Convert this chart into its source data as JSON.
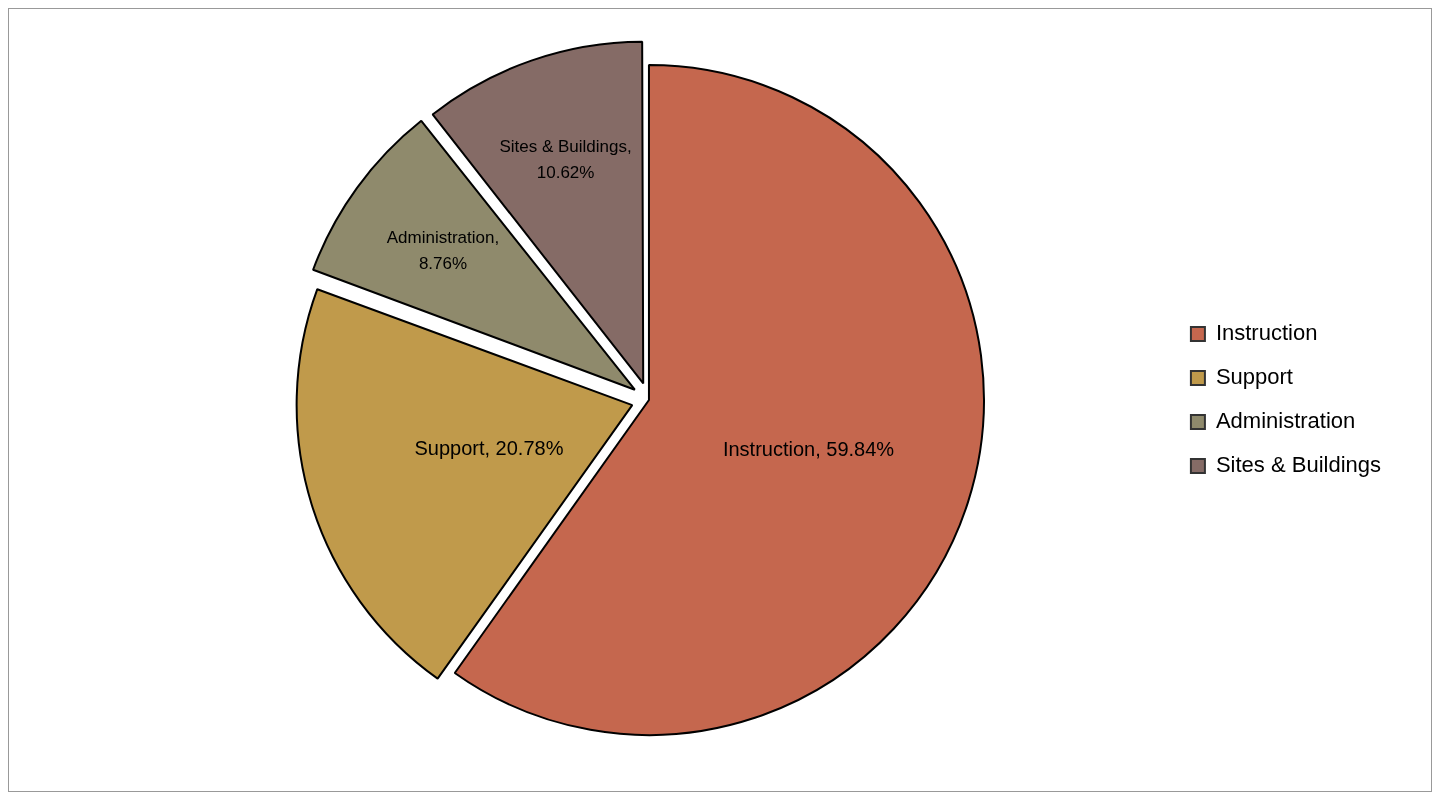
{
  "chart_data": {
    "type": "pie",
    "categories": [
      "Instruction",
      "Support",
      "Administration",
      "Sites & Buildings"
    ],
    "values": [
      59.84,
      20.78,
      8.76,
      10.62
    ],
    "colors": [
      "#c5674e",
      "#c09a4b",
      "#8f8a6c",
      "#856b66"
    ],
    "value_labels": [
      "Instruction, 59.84%",
      "Support, 20.78%",
      "Administration, 8.76%",
      "Sites & Buildings, 10.62%"
    ],
    "legend": "right"
  }
}
